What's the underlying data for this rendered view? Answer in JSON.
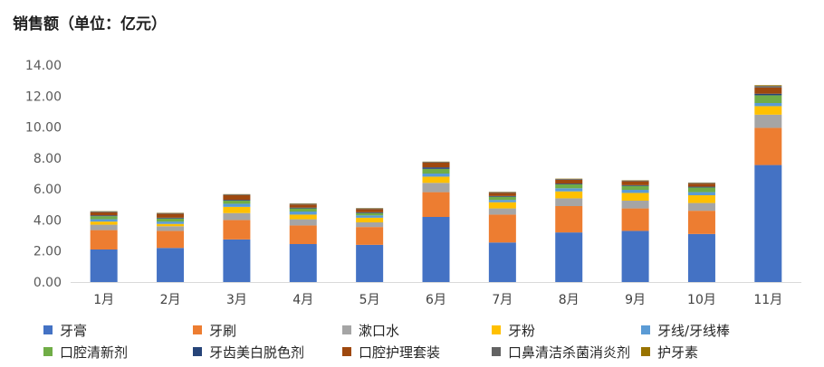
{
  "chart_data": {
    "type": "bar",
    "stacked": true,
    "title": "销售额（单位：亿元）",
    "categories": [
      "1月",
      "2月",
      "3月",
      "4月",
      "5月",
      "6月",
      "7月",
      "8月",
      "9月",
      "10月",
      "11月"
    ],
    "ylim": [
      0,
      14
    ],
    "yticks": [
      "0.00",
      "2.00",
      "4.00",
      "6.00",
      "8.00",
      "10.00",
      "12.00",
      "14.00"
    ],
    "grid": false,
    "legend_position": "bottom",
    "series": [
      {
        "name": "牙膏",
        "color": "#4472C4",
        "values": [
          2.1,
          2.2,
          2.75,
          2.45,
          2.4,
          4.2,
          2.55,
          3.2,
          3.3,
          3.1,
          7.55
        ]
      },
      {
        "name": "牙刷",
        "color": "#ED7D31",
        "values": [
          1.25,
          1.1,
          1.25,
          1.2,
          1.15,
          1.6,
          1.8,
          1.7,
          1.45,
          1.5,
          2.4
        ]
      },
      {
        "name": "漱口水",
        "color": "#A5A5A5",
        "values": [
          0.35,
          0.3,
          0.45,
          0.4,
          0.3,
          0.6,
          0.4,
          0.5,
          0.5,
          0.5,
          0.85
        ]
      },
      {
        "name": "牙粉",
        "color": "#FFC000",
        "values": [
          0.2,
          0.15,
          0.4,
          0.3,
          0.3,
          0.4,
          0.4,
          0.45,
          0.5,
          0.5,
          0.55
        ]
      },
      {
        "name": "牙线/牙线棒",
        "color": "#5B9BD5",
        "values": [
          0.15,
          0.15,
          0.2,
          0.2,
          0.15,
          0.2,
          0.15,
          0.2,
          0.2,
          0.2,
          0.2
        ]
      },
      {
        "name": "口腔清新剂",
        "color": "#70AD47",
        "values": [
          0.2,
          0.2,
          0.2,
          0.2,
          0.15,
          0.3,
          0.2,
          0.25,
          0.25,
          0.3,
          0.5
        ]
      },
      {
        "name": "牙齿美白脱色剂",
        "color": "#264478",
        "values": [
          0.05,
          0.05,
          0.05,
          0.05,
          0.05,
          0.1,
          0.05,
          0.05,
          0.05,
          0.05,
          0.1
        ]
      },
      {
        "name": "口腔护理套装",
        "color": "#9E480E",
        "values": [
          0.2,
          0.25,
          0.3,
          0.2,
          0.2,
          0.3,
          0.2,
          0.25,
          0.25,
          0.2,
          0.4
        ]
      },
      {
        "name": "口鼻清洁杀菌消炎剂",
        "color": "#636363",
        "values": [
          0.05,
          0.05,
          0.05,
          0.05,
          0.05,
          0.05,
          0.05,
          0.05,
          0.05,
          0.05,
          0.1
        ]
      },
      {
        "name": "护牙素",
        "color": "#997300",
        "values": [
          0.02,
          0.02,
          0.02,
          0.02,
          0.02,
          0.02,
          0.02,
          0.02,
          0.02,
          0.02,
          0.05
        ]
      }
    ]
  }
}
